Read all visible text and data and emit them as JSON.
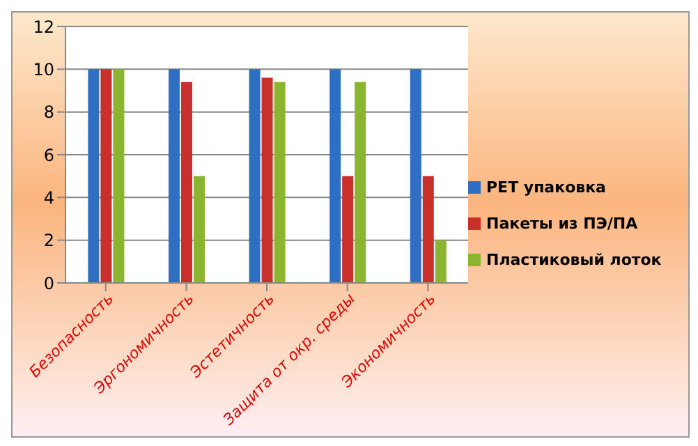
{
  "chart_data": {
    "type": "bar",
    "categories": [
      "Безопасность",
      "Эргономичность",
      "Эстетичность",
      "Защита от окр. среды",
      "Экономичность"
    ],
    "series": [
      {
        "name": "PET упаковка",
        "color": "#2e6fc4",
        "values": [
          10,
          10,
          10,
          10,
          10
        ]
      },
      {
        "name": "Пакеты из ПЭ/ПА",
        "color": "#c9302c",
        "values": [
          10,
          9.4,
          9.6,
          5,
          5
        ]
      },
      {
        "name": "Пластиковый лоток",
        "color": "#8ab52e",
        "values": [
          10,
          5,
          9.4,
          9.4,
          2
        ]
      }
    ],
    "ylim": [
      0,
      12
    ],
    "yticks": [
      0,
      2,
      4,
      6,
      8,
      10,
      12
    ],
    "grid": "y",
    "legend": "right"
  }
}
